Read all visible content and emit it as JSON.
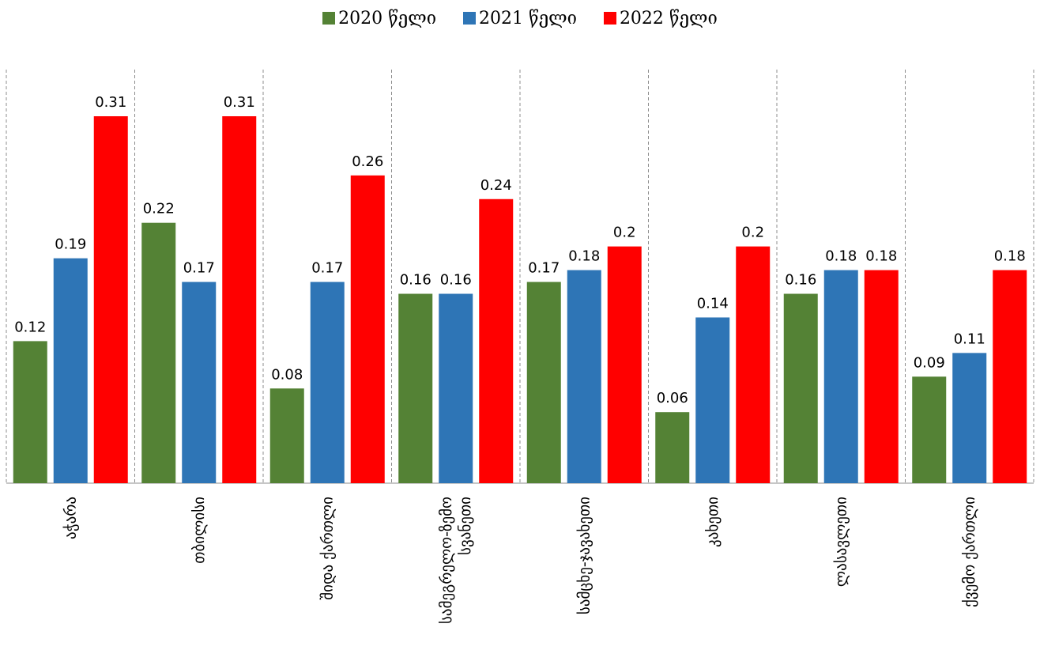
{
  "chart_data": {
    "type": "bar",
    "legend_position": "top",
    "grid": false,
    "title": "",
    "xlabel": "",
    "ylabel": "",
    "ylim": [
      0,
      0.33
    ],
    "categories": [
      [
        "აჭარა"
      ],
      [
        "თბილისი"
      ],
      [
        "შიდა ქართლი"
      ],
      [
        "სამეგრელო-ზემო",
        "სვანეთი"
      ],
      [
        "სამცხე-ჯავახეთი"
      ],
      [
        "კახეთი"
      ],
      [
        "ლასავლეთი"
      ],
      [
        "ქვემო ქართლი"
      ]
    ],
    "series": [
      {
        "name": "2020 წელი",
        "color": "#548235",
        "values": [
          0.12,
          0.22,
          0.08,
          0.16,
          0.17,
          0.06,
          0.16,
          0.09
        ]
      },
      {
        "name": "2021 წელი",
        "color": "#2E75B6",
        "values": [
          0.19,
          0.17,
          0.17,
          0.16,
          0.18,
          0.14,
          0.18,
          0.11
        ]
      },
      {
        "name": "2022 წელი",
        "color": "#FF0000",
        "values": [
          0.31,
          0.31,
          0.26,
          0.24,
          0.2,
          0.2,
          0.18,
          0.18
        ]
      }
    ]
  }
}
